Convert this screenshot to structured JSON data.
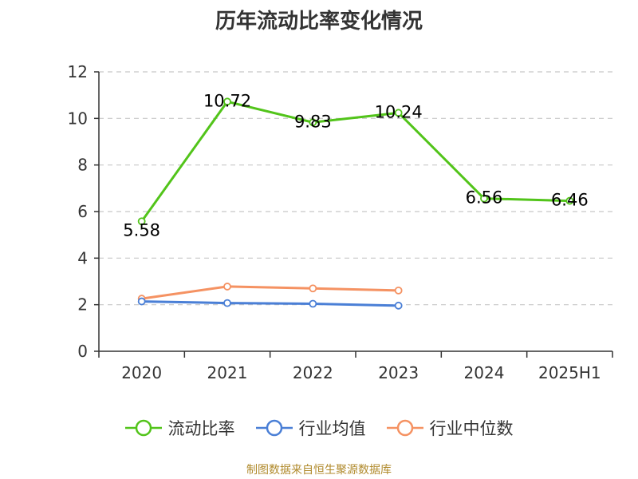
{
  "chart_data": {
    "type": "line",
    "title": "历年流动比率变化情况",
    "categories": [
      "2020",
      "2021",
      "2022",
      "2023",
      "2024",
      "2025H1"
    ],
    "ylim": [
      0,
      12
    ],
    "yticks": [
      0,
      2,
      4,
      6,
      8,
      10,
      12
    ],
    "grid": true,
    "legend_placement": "bottom",
    "series": [
      {
        "name": "流动比率",
        "color": "#52c41a",
        "values": [
          5.58,
          10.72,
          9.83,
          10.24,
          6.56,
          6.46
        ],
        "labels": [
          "5.58",
          "10.72",
          "9.83",
          "10.24",
          "6.56",
          "6.46"
        ]
      },
      {
        "name": "行业均值",
        "color": "#4a7fd6",
        "values": [
          2.14,
          2.07,
          2.04,
          1.96,
          null,
          null
        ]
      },
      {
        "name": "行业中位数",
        "color": "#f59262",
        "values": [
          2.26,
          2.78,
          2.7,
          2.61,
          null,
          null
        ]
      }
    ]
  },
  "footer": {
    "source": "制图数据来自恒生聚源数据库"
  }
}
